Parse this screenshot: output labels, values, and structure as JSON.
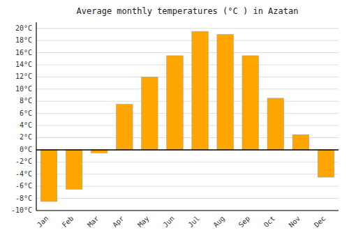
{
  "chart_data": {
    "type": "bar",
    "title": "Average monthly temperatures (°C ) in Azatan",
    "categories": [
      "Jan",
      "Feb",
      "Mar",
      "Apr",
      "May",
      "Jun",
      "Jul",
      "Aug",
      "Sep",
      "Oct",
      "Nov",
      "Dec"
    ],
    "values": [
      -8.5,
      -6.5,
      -0.5,
      7.5,
      12.0,
      15.5,
      19.5,
      19.0,
      15.5,
      8.5,
      2.5,
      -4.5
    ],
    "color": "#FFA500",
    "ylim": [
      -10,
      21
    ],
    "yticks": [
      {
        "value": -10,
        "label": "-10°C"
      },
      {
        "value": -8,
        "label": "-8°C"
      },
      {
        "value": -6,
        "label": "-6°C"
      },
      {
        "value": -4,
        "label": "-4°C"
      },
      {
        "value": -2,
        "label": "-2°C"
      },
      {
        "value": 0,
        "label": "0°C"
      },
      {
        "value": 2,
        "label": "2°C"
      },
      {
        "value": 4,
        "label": "4°C"
      },
      {
        "value": 6,
        "label": "6°C"
      },
      {
        "value": 8,
        "label": "8°C"
      },
      {
        "value": 10,
        "label": "10°C"
      },
      {
        "value": 12,
        "label": "12°C"
      },
      {
        "value": 14,
        "label": "14°C"
      },
      {
        "value": 16,
        "label": "16°C"
      },
      {
        "value": 18,
        "label": "18°C"
      },
      {
        "value": 20,
        "label": "20°C"
      }
    ],
    "grid": true
  }
}
